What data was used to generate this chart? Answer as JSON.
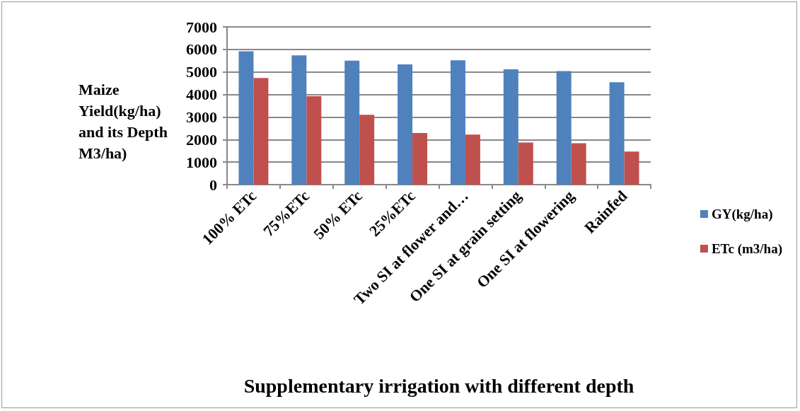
{
  "chart_data": {
    "type": "bar",
    "xlabel": "Supplementary irrigation with different depth",
    "ylabel": "Maize Yield(kg/ha) and its Depth M3/ha)",
    "categories": [
      "100% ETc",
      "75%ETc",
      "50% ETc",
      "25%ETc",
      "Two SI at flower and…",
      "One SI at grain setting",
      "One SI at flowering",
      "Rainfed"
    ],
    "series": [
      {
        "name": "GY(kg/ha)",
        "color": "#4f81bd",
        "values": [
          5920,
          5740,
          5500,
          5340,
          5520,
          5120,
          5040,
          4540
        ]
      },
      {
        "name": "ETc (m3/ha)",
        "color": "#c0504d",
        "values": [
          4730,
          3920,
          3100,
          2290,
          2220,
          1870,
          1840,
          1470
        ]
      }
    ],
    "ylim": [
      0,
      7000
    ],
    "yticks": [
      0,
      1000,
      2000,
      3000,
      4000,
      5000,
      6000,
      7000
    ],
    "grid": "y",
    "legend": "right"
  }
}
